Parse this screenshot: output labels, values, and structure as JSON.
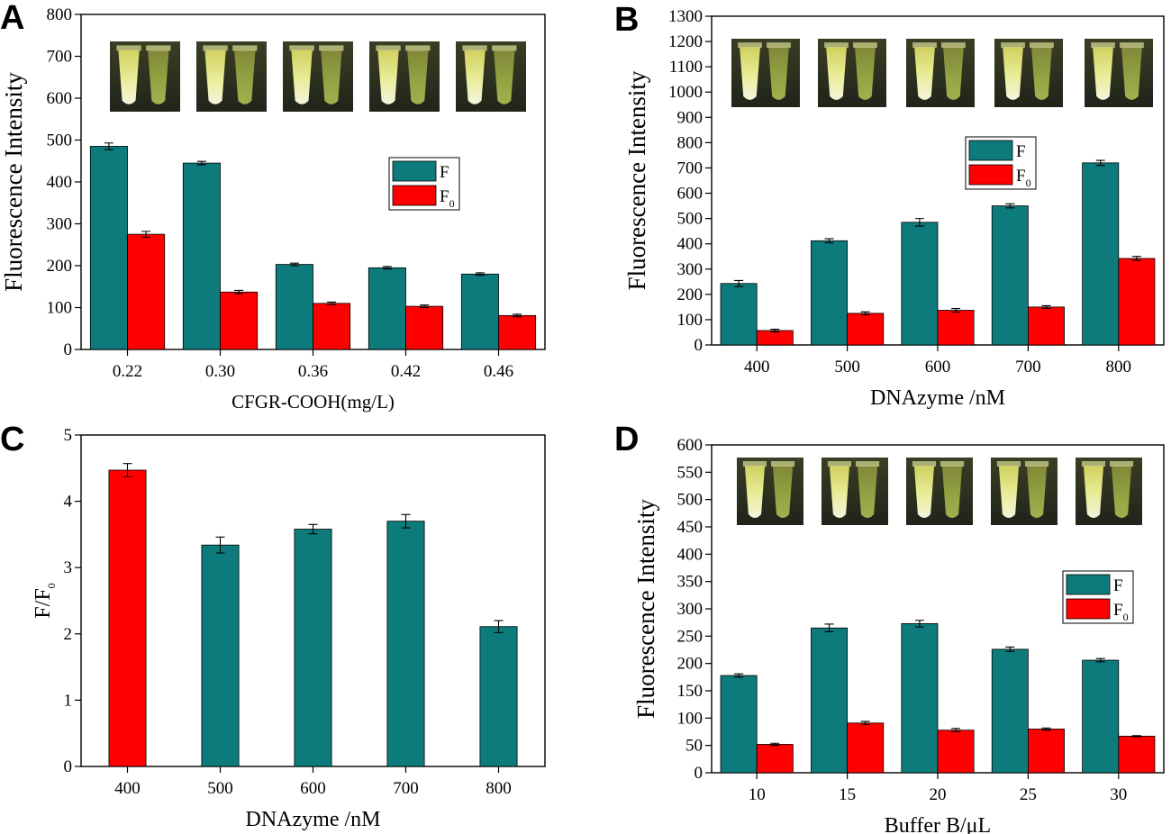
{
  "colors": {
    "F": "#0d7b7b",
    "F0": "#ff0000",
    "tube_bg": "#2f3320"
  },
  "chart_data": [
    {
      "id": "A",
      "type": "bar",
      "panel_label": "A",
      "xlabel": "CFGR-COOH(mg/L)",
      "ylabel": "Fluorescence Intensity",
      "categories": [
        "0.22",
        "0.30",
        "0.36",
        "0.42",
        "0.46"
      ],
      "ylim": [
        0,
        800
      ],
      "yticks": [
        0,
        100,
        200,
        300,
        400,
        500,
        600,
        700,
        800
      ],
      "legend": {
        "position": "right",
        "entries": [
          "F",
          "F0"
        ]
      },
      "series": [
        {
          "name": "F",
          "values": [
            485,
            445,
            203,
            195,
            180
          ],
          "errors": [
            8,
            4,
            3,
            3,
            3
          ]
        },
        {
          "name": "F0",
          "values": [
            275,
            137,
            110,
            103,
            81
          ],
          "errors": [
            7,
            4,
            3,
            3,
            3
          ]
        }
      ],
      "has_tube_images": true
    },
    {
      "id": "B",
      "type": "bar",
      "panel_label": "B",
      "xlabel": "DNAzyme /nM",
      "ylabel": "Fluorescence Intensity",
      "categories": [
        "400",
        "500",
        "600",
        "700",
        "800"
      ],
      "ylim": [
        0,
        1300
      ],
      "yticks": [
        0,
        100,
        200,
        300,
        400,
        500,
        600,
        700,
        800,
        900,
        1000,
        1100,
        1200,
        1300
      ],
      "legend": {
        "position": "left",
        "entries": [
          "F",
          "F0"
        ]
      },
      "series": [
        {
          "name": "F",
          "values": [
            243,
            412,
            485,
            550,
            720
          ],
          "errors": [
            12,
            8,
            15,
            8,
            10
          ]
        },
        {
          "name": "F0",
          "values": [
            57,
            125,
            137,
            150,
            342
          ],
          "errors": [
            5,
            6,
            7,
            5,
            8
          ]
        }
      ],
      "has_tube_images": true
    },
    {
      "id": "C",
      "type": "bar",
      "panel_label": "C",
      "xlabel": "DNAzyme /nM",
      "ylabel": "F/F0",
      "categories": [
        "400",
        "500",
        "600",
        "700",
        "800"
      ],
      "ylim": [
        0,
        5
      ],
      "yticks": [
        0,
        1,
        2,
        3,
        4,
        5
      ],
      "series": [
        {
          "name": "F/F0",
          "values": [
            4.47,
            3.34,
            3.58,
            3.7,
            2.11
          ],
          "errors": [
            0.1,
            0.12,
            0.07,
            0.1,
            0.09
          ],
          "colors": [
            "#ff0000",
            "#0d7b7b",
            "#0d7b7b",
            "#0d7b7b",
            "#0d7b7b"
          ]
        }
      ],
      "has_tube_images": false
    },
    {
      "id": "D",
      "type": "bar",
      "panel_label": "D",
      "xlabel": "Buffer B/μL",
      "ylabel": "Fluorescence Intensity",
      "categories": [
        "10",
        "15",
        "20",
        "25",
        "30"
      ],
      "ylim": [
        0,
        600
      ],
      "yticks": [
        0,
        50,
        100,
        150,
        200,
        250,
        300,
        350,
        400,
        450,
        500,
        550,
        600
      ],
      "legend": {
        "position": "right",
        "entries": [
          "F",
          "F0"
        ]
      },
      "series": [
        {
          "name": "F",
          "values": [
            178,
            265,
            273,
            226,
            206
          ],
          "errors": [
            3,
            7,
            6,
            4,
            3
          ]
        },
        {
          "name": "F0",
          "values": [
            52,
            91,
            78,
            80,
            67
          ],
          "errors": [
            2,
            3,
            3,
            2,
            1
          ]
        }
      ],
      "has_tube_images": true
    }
  ]
}
